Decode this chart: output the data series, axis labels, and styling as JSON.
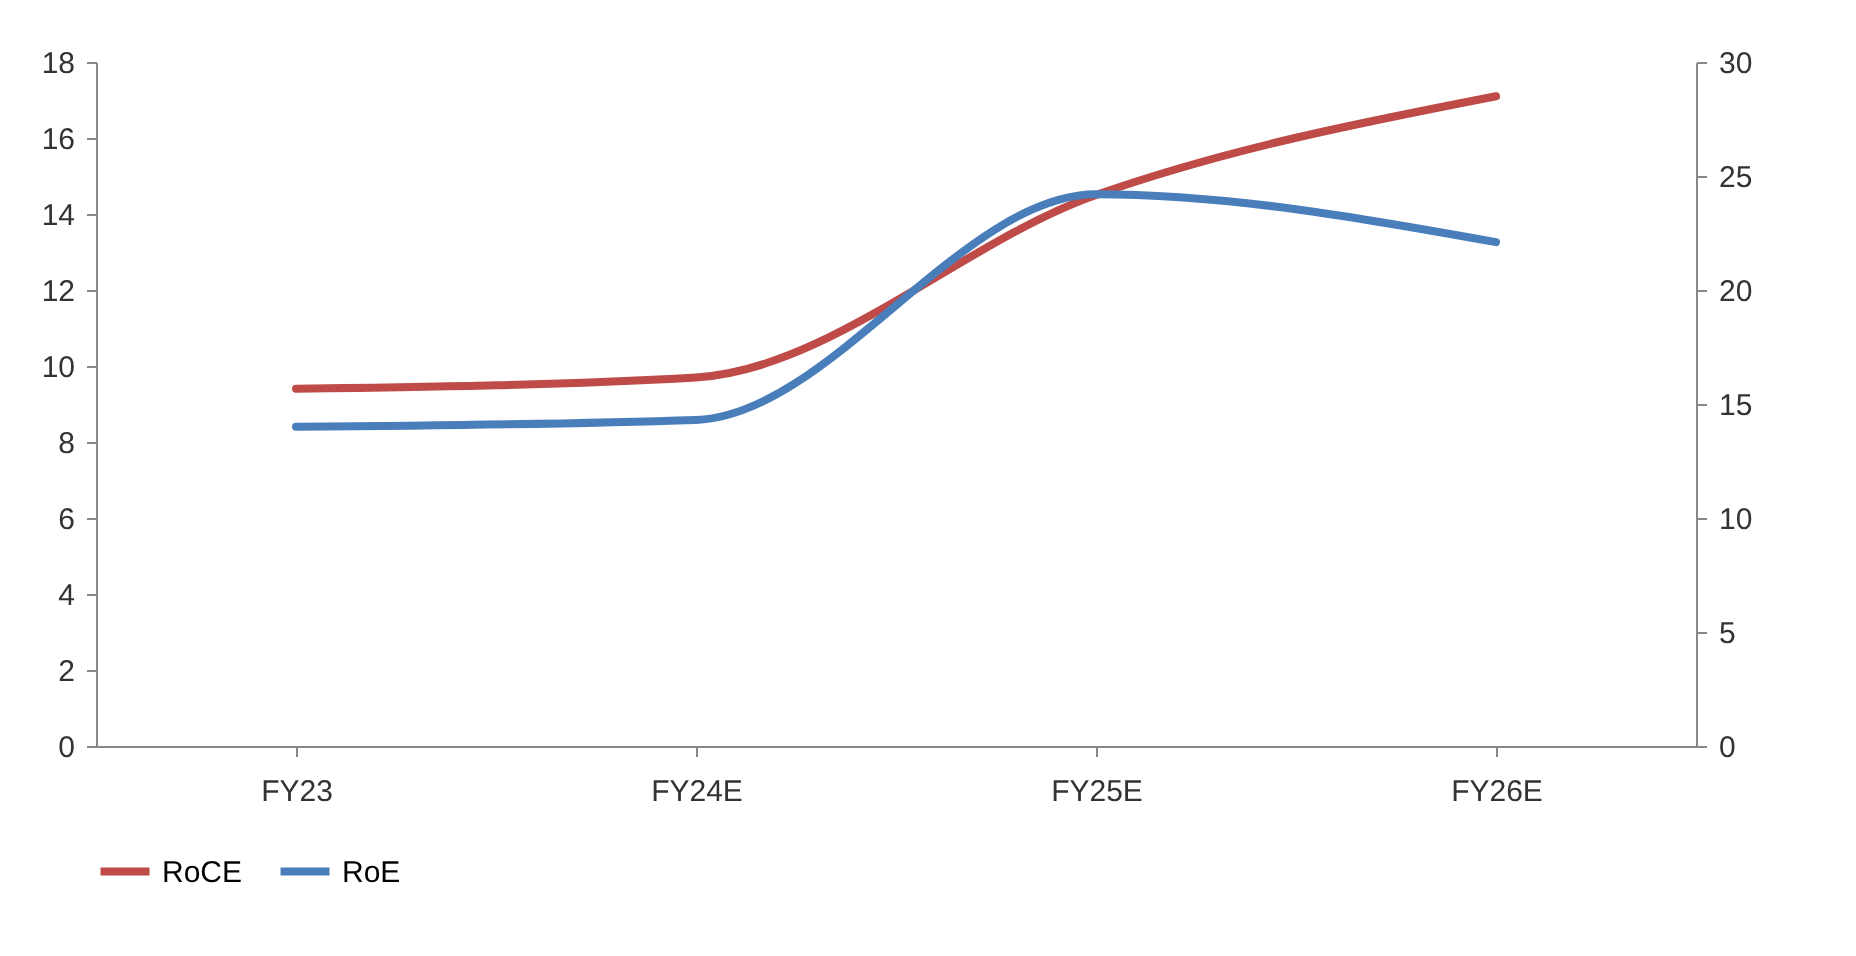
{
  "chart_data": {
    "type": "line",
    "categories": [
      "FY23",
      "FY24E",
      "FY25E",
      "FY26E"
    ],
    "series": [
      {
        "name": "RoCE",
        "color": "#be4b48",
        "values": [
          9.4,
          9.7,
          14.5,
          17.1
        ]
      },
      {
        "name": "RoE",
        "color": "#4a7ebb",
        "axis": "y2",
        "values": [
          14.0,
          14.3,
          24.2,
          22.1
        ]
      }
    ],
    "ylim": [
      0,
      18
    ],
    "yticks": [
      0,
      2,
      4,
      6,
      8,
      10,
      12,
      14,
      16,
      18
    ],
    "y2lim": [
      0,
      30
    ],
    "y2ticks": [
      0,
      5,
      10,
      15,
      20,
      25,
      30
    ],
    "grid": false,
    "legend": "bottom",
    "line_style": "solid",
    "marker": "none"
  }
}
